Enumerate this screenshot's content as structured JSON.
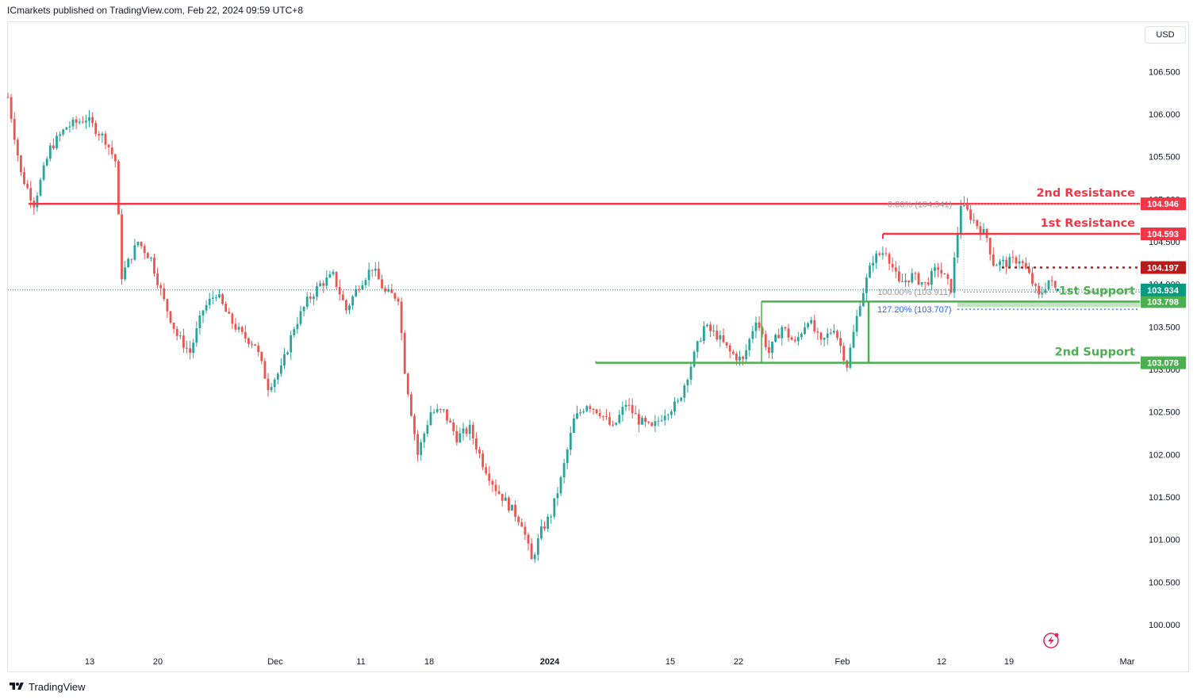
{
  "header": {
    "text": "ICmarkets published on TradingView.com, Feb 22, 2024 09:59 UTC+8"
  },
  "currency_button": "USD",
  "footer": {
    "brand": "TradingView"
  },
  "colors": {
    "up": "#26a69a",
    "down": "#ef5350",
    "resistance": "#f23645",
    "support": "#4caf50",
    "current_price": "#089981",
    "dotted_level": "#b71c1c",
    "fib_label": "#2962ff",
    "grid": "#ffffff"
  },
  "chart_data": {
    "type": "candlestick",
    "symbol_currency": "USD",
    "ylim": [
      99.85,
      106.95
    ],
    "y_ticks": [
      100.0,
      100.5,
      101.0,
      101.5,
      102.0,
      102.5,
      103.0,
      103.5,
      104.0,
      104.5,
      105.0,
      105.5,
      106.0,
      106.5
    ],
    "y_tick_labels": [
      "100.000",
      "100.500",
      "101.000",
      "101.500",
      "102.000",
      "102.500",
      "103.000",
      "103.500",
      "104.000",
      "104.500",
      "105.000",
      "105.500",
      "106.000",
      "106.500"
    ],
    "x_tick_labels": [
      "13",
      "20",
      "Dec",
      "11",
      "18",
      "2024",
      "15",
      "22",
      "Feb",
      "12",
      "19",
      "Mar"
    ],
    "price_path": [
      [
        0,
        106.2
      ],
      [
        4,
        105.3
      ],
      [
        8,
        104.95
      ],
      [
        13,
        105.6
      ],
      [
        18,
        105.85
      ],
      [
        24,
        105.95
      ],
      [
        30,
        105.7
      ],
      [
        33,
        105.45
      ],
      [
        35,
        104.1
      ],
      [
        40,
        104.5
      ],
      [
        44,
        104.3
      ],
      [
        48,
        103.8
      ],
      [
        52,
        103.4
      ],
      [
        56,
        103.2
      ],
      [
        60,
        103.7
      ],
      [
        64,
        103.9
      ],
      [
        68,
        103.6
      ],
      [
        72,
        103.4
      ],
      [
        76,
        103.3
      ],
      [
        80,
        102.8
      ],
      [
        84,
        103.0
      ],
      [
        88,
        103.5
      ],
      [
        92,
        103.8
      ],
      [
        96,
        104.0
      ],
      [
        100,
        104.1
      ],
      [
        104,
        103.7
      ],
      [
        108,
        104.0
      ],
      [
        112,
        104.2
      ],
      [
        116,
        103.9
      ],
      [
        120,
        103.85
      ],
      [
        122,
        103.0
      ],
      [
        126,
        102.0
      ],
      [
        130,
        102.5
      ],
      [
        134,
        102.5
      ],
      [
        138,
        102.2
      ],
      [
        142,
        102.3
      ],
      [
        146,
        101.9
      ],
      [
        150,
        101.6
      ],
      [
        154,
        101.4
      ],
      [
        158,
        101.2
      ],
      [
        161,
        100.75
      ],
      [
        164,
        101.1
      ],
      [
        167,
        101.3
      ],
      [
        170,
        101.7
      ],
      [
        174,
        102.4
      ],
      [
        178,
        102.6
      ],
      [
        182,
        102.5
      ],
      [
        186,
        102.3
      ],
      [
        190,
        102.6
      ],
      [
        194,
        102.4
      ],
      [
        198,
        102.3
      ],
      [
        202,
        102.5
      ],
      [
        206,
        102.6
      ],
      [
        210,
        103.05
      ],
      [
        214,
        103.5
      ],
      [
        218,
        103.4
      ],
      [
        222,
        103.2
      ],
      [
        226,
        103.1
      ],
      [
        230,
        103.6
      ],
      [
        234,
        103.2
      ],
      [
        238,
        103.5
      ],
      [
        242,
        103.3
      ],
      [
        246,
        103.6
      ],
      [
        250,
        103.3
      ],
      [
        254,
        103.5
      ],
      [
        258,
        103.05
      ],
      [
        262,
        103.8
      ],
      [
        266,
        104.3
      ],
      [
        270,
        104.4
      ],
      [
        274,
        104.0
      ],
      [
        278,
        104.1
      ],
      [
        282,
        104.0
      ],
      [
        286,
        104.2
      ],
      [
        290,
        103.95
      ],
      [
        293,
        104.95
      ],
      [
        297,
        104.75
      ],
      [
        301,
        104.55
      ],
      [
        303,
        104.25
      ],
      [
        307,
        104.25
      ],
      [
        311,
        104.3
      ],
      [
        314,
        104.1
      ],
      [
        317,
        103.85
      ],
      [
        320,
        104.05
      ],
      [
        322,
        103.95
      ]
    ],
    "levels": [
      {
        "name": "2nd Resistance",
        "value": "104.946",
        "kind": "resistance"
      },
      {
        "name": "1st Resistance",
        "value": "104.593",
        "kind": "resistance"
      },
      {
        "name": "1st Support",
        "value": "103.798",
        "kind": "support"
      },
      {
        "name": "2nd Support",
        "value": "103.078",
        "kind": "support"
      }
    ],
    "dotted_level": {
      "value": "104.197"
    },
    "current_price": {
      "value": "103.934"
    },
    "fib_labels": [
      "0.00% (104.941)",
      "100.00% (103.911)",
      "127.20% (103.707)"
    ]
  }
}
